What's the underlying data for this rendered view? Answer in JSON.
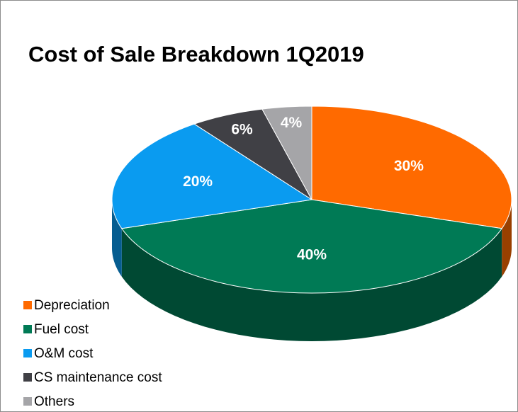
{
  "chart_data": {
    "type": "pie",
    "title": "Cost of Sale Breakdown 1Q2019",
    "categories": [
      "Depreciation",
      "Fuel cost",
      "O&M cost",
      "CS maintenance cost",
      "Others"
    ],
    "values": [
      30,
      40,
      20,
      6,
      4
    ],
    "value_labels": [
      "30%",
      "40%",
      "20%",
      "6%",
      "4%"
    ],
    "colors": [
      "#ff6a00",
      "#007a55",
      "#0a9bf0",
      "#404045",
      "#a5a5a8"
    ],
    "legend": "bottom-left"
  }
}
